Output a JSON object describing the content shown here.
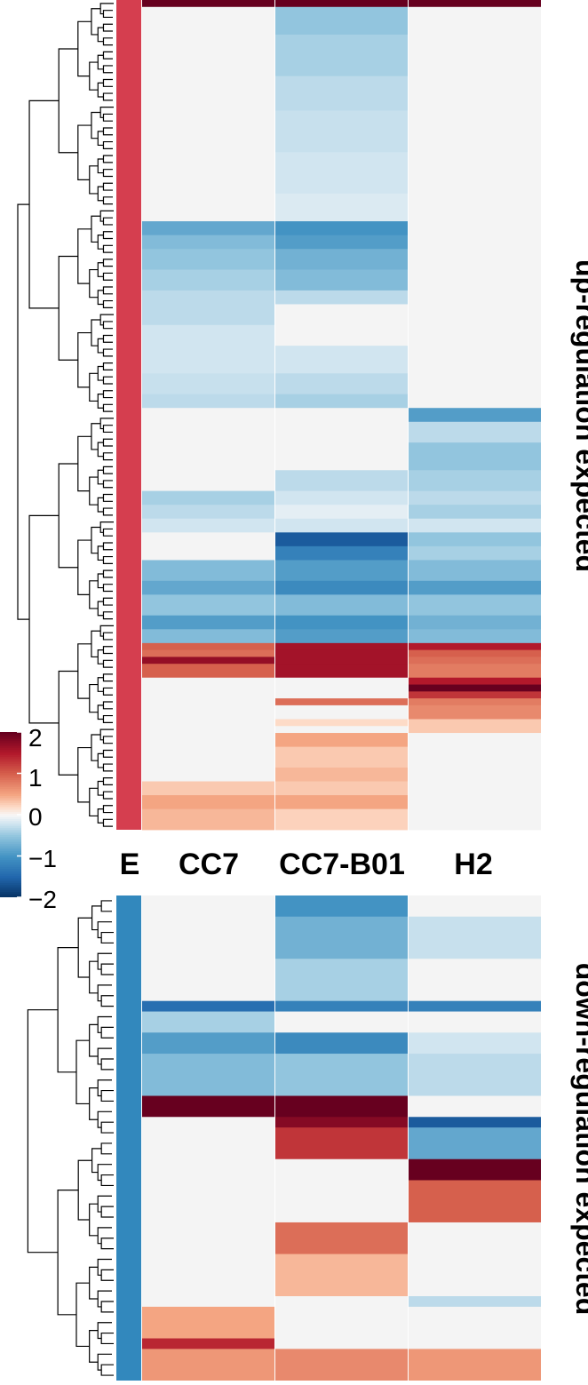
{
  "chart_data": {
    "type": "heatmap",
    "title": "",
    "columns": [
      "E",
      "CC7",
      "CC7-B01",
      "H2"
    ],
    "data_columns": [
      "CC7",
      "CC7-B01",
      "H2"
    ],
    "annotation_column": "E",
    "color_scale": {
      "min": -2,
      "max": 2,
      "ticks": [
        {
          "value": 2,
          "label": "2"
        },
        {
          "value": 1,
          "label": "1"
        },
        {
          "value": 0,
          "label": "0"
        },
        {
          "value": -1,
          "label": "−1"
        },
        {
          "value": -2,
          "label": "−2"
        }
      ],
      "stops": [
        {
          "v": -2,
          "color": "#053061"
        },
        {
          "v": -1.5,
          "color": "#2166ac"
        },
        {
          "v": -1,
          "color": "#4393c3"
        },
        {
          "v": -0.5,
          "color": "#92c5de"
        },
        {
          "v": -0.2,
          "color": "#d1e5f0"
        },
        {
          "v": 0,
          "color": "#f7f7f7"
        },
        {
          "v": 0.2,
          "color": "#fddbc7"
        },
        {
          "v": 0.5,
          "color": "#f4a582"
        },
        {
          "v": 1,
          "color": "#d6604d"
        },
        {
          "v": 1.5,
          "color": "#b2182b"
        },
        {
          "v": 2,
          "color": "#67001f"
        }
      ]
    },
    "na_color": "#f4f4f4",
    "panels": [
      {
        "label": "up-regulation expected",
        "annotation_color": "#d53e4f",
        "rows": [
          {
            "n": 1,
            "v": [
              2.0,
              2.0,
              2.0
            ]
          },
          {
            "n": 4,
            "v": [
              null,
              -0.5,
              null
            ]
          },
          {
            "n": 6,
            "v": [
              null,
              -0.4,
              null
            ]
          },
          {
            "n": 5,
            "v": [
              null,
              -0.3,
              null
            ]
          },
          {
            "n": 6,
            "v": [
              null,
              -0.25,
              null
            ]
          },
          {
            "n": 6,
            "v": [
              null,
              -0.2,
              null
            ]
          },
          {
            "n": 4,
            "v": [
              null,
              -0.15,
              null
            ]
          },
          {
            "n": 2,
            "v": [
              -0.8,
              -1.0,
              null
            ]
          },
          {
            "n": 2,
            "v": [
              -0.6,
              -0.9,
              null
            ]
          },
          {
            "n": 3,
            "v": [
              -0.5,
              -0.7,
              null
            ]
          },
          {
            "n": 3,
            "v": [
              -0.4,
              -0.6,
              null
            ]
          },
          {
            "n": 2,
            "v": [
              -0.3,
              -0.3,
              null
            ]
          },
          {
            "n": 3,
            "v": [
              -0.3,
              null,
              null
            ]
          },
          {
            "n": 3,
            "v": [
              -0.2,
              null,
              null
            ]
          },
          {
            "n": 4,
            "v": [
              -0.2,
              -0.2,
              null
            ]
          },
          {
            "n": 3,
            "v": [
              -0.25,
              -0.3,
              null
            ]
          },
          {
            "n": 2,
            "v": [
              -0.3,
              -0.4,
              null
            ]
          },
          {
            "n": 2,
            "v": [
              null,
              null,
              -0.9
            ]
          },
          {
            "n": 3,
            "v": [
              null,
              null,
              -0.3
            ]
          },
          {
            "n": 4,
            "v": [
              null,
              null,
              -0.5
            ]
          },
          {
            "n": 3,
            "v": [
              null,
              -0.3,
              -0.4
            ]
          },
          {
            "n": 2,
            "v": [
              -0.4,
              -0.2,
              -0.3
            ]
          },
          {
            "n": 2,
            "v": [
              -0.3,
              -0.1,
              -0.4
            ]
          },
          {
            "n": 2,
            "v": [
              -0.2,
              -0.2,
              -0.2
            ]
          },
          {
            "n": 2,
            "v": [
              null,
              -1.6,
              -0.5
            ]
          },
          {
            "n": 2,
            "v": [
              null,
              -1.2,
              -0.4
            ]
          },
          {
            "n": 3,
            "v": [
              -0.6,
              -0.9,
              -0.6
            ]
          },
          {
            "n": 2,
            "v": [
              -0.8,
              -1.1,
              -0.9
            ]
          },
          {
            "n": 3,
            "v": [
              -0.5,
              -0.6,
              -0.5
            ]
          },
          {
            "n": 2,
            "v": [
              -0.9,
              -1.0,
              -0.7
            ]
          },
          {
            "n": 2,
            "v": [
              -0.6,
              -0.9,
              -0.6
            ]
          },
          {
            "n": 1,
            "v": [
              1.0,
              1.6,
              1.5
            ]
          },
          {
            "n": 1,
            "v": [
              0.9,
              1.6,
              1.0
            ]
          },
          {
            "n": 1,
            "v": [
              1.7,
              1.6,
              0.9
            ]
          },
          {
            "n": 2,
            "v": [
              1.0,
              1.6,
              0.8
            ]
          },
          {
            "n": 1,
            "v": [
              null,
              null,
              1.5
            ]
          },
          {
            "n": 1,
            "v": [
              null,
              null,
              2.0
            ]
          },
          {
            "n": 1,
            "v": [
              null,
              null,
              1.3
            ]
          },
          {
            "n": 1,
            "v": [
              null,
              0.9,
              0.8
            ]
          },
          {
            "n": 2,
            "v": [
              null,
              null,
              0.7
            ]
          },
          {
            "n": 1,
            "v": [
              null,
              0.2,
              0.3
            ]
          },
          {
            "n": 1,
            "v": [
              null,
              null,
              0.3
            ]
          },
          {
            "n": 2,
            "v": [
              null,
              0.5,
              null
            ]
          },
          {
            "n": 3,
            "v": [
              null,
              0.3,
              null
            ]
          },
          {
            "n": 2,
            "v": [
              null,
              0.4,
              null
            ]
          },
          {
            "n": 2,
            "v": [
              0.3,
              0.3,
              null
            ]
          },
          {
            "n": 2,
            "v": [
              0.5,
              0.5,
              null
            ]
          },
          {
            "n": 3,
            "v": [
              0.4,
              0.25,
              null
            ]
          }
        ]
      },
      {
        "label": "down-regulation expected",
        "annotation_color": "#3288bd",
        "rows": [
          {
            "n": 2,
            "v": [
              null,
              -1.0,
              null
            ]
          },
          {
            "n": 4,
            "v": [
              null,
              -0.7,
              -0.25
            ]
          },
          {
            "n": 4,
            "v": [
              null,
              -0.4,
              null
            ]
          },
          {
            "n": 1,
            "v": [
              -1.4,
              -1.2,
              -1.2
            ]
          },
          {
            "n": 2,
            "v": [
              -0.4,
              null,
              null
            ]
          },
          {
            "n": 2,
            "v": [
              -0.9,
              -1.1,
              -0.2
            ]
          },
          {
            "n": 4,
            "v": [
              -0.6,
              -0.5,
              -0.3
            ]
          },
          {
            "n": 2,
            "v": [
              2.0,
              2.0,
              null
            ]
          },
          {
            "n": 1,
            "v": [
              null,
              1.8,
              -1.6
            ]
          },
          {
            "n": 3,
            "v": [
              null,
              1.3,
              -0.8
            ]
          },
          {
            "n": 2,
            "v": [
              null,
              null,
              2.0
            ]
          },
          {
            "n": 4,
            "v": [
              null,
              null,
              1.0
            ]
          },
          {
            "n": 3,
            "v": [
              null,
              0.9,
              null
            ]
          },
          {
            "n": 4,
            "v": [
              null,
              0.4,
              null
            ]
          },
          {
            "n": 1,
            "v": [
              null,
              null,
              -0.3
            ]
          },
          {
            "n": 3,
            "v": [
              0.5,
              null,
              null
            ]
          },
          {
            "n": 1,
            "v": [
              1.4,
              null,
              null
            ]
          },
          {
            "n": 3,
            "v": [
              0.6,
              0.7,
              0.6
            ]
          }
        ]
      }
    ]
  }
}
